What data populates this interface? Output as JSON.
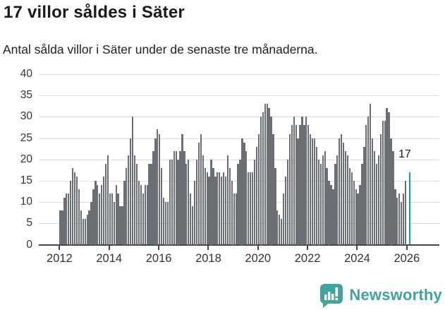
{
  "header": {
    "title": "17 villor såldes i Säter",
    "subtitle": "Antal sålda villor i Säter under de senaste tre månaderna."
  },
  "chart_data": {
    "type": "bar",
    "title": "17 villor såldes i Säter",
    "subtitle": "Antal sålda villor i Säter under de senaste tre månaderna.",
    "x_start": "2012-01",
    "frequency": "monthly",
    "values": [
      8,
      8,
      11,
      12,
      12,
      15,
      18,
      17,
      16,
      13,
      8,
      6,
      6,
      7,
      8,
      10,
      13,
      15,
      14,
      12,
      14,
      16,
      19,
      21,
      12,
      12,
      10,
      14,
      12,
      9,
      9,
      15,
      18,
      21,
      25,
      30,
      21,
      19,
      15,
      14,
      12,
      14,
      14,
      19,
      19,
      22,
      25,
      27,
      26,
      18,
      11,
      10,
      10,
      20,
      20,
      22,
      22,
      20,
      22,
      26,
      22,
      19,
      20,
      12,
      9,
      15,
      20,
      24,
      26,
      21,
      18,
      17,
      16,
      20,
      18,
      16,
      17,
      17,
      16,
      17,
      16,
      21,
      18,
      15,
      12,
      12,
      19,
      20,
      25,
      24,
      22,
      17,
      17,
      17,
      20,
      23,
      26,
      30,
      31,
      33,
      33,
      32,
      30,
      26,
      18,
      8,
      7,
      6,
      12,
      16,
      20,
      26,
      28,
      30,
      28,
      25,
      28,
      30,
      28,
      30,
      28,
      26,
      25,
      25,
      23,
      20,
      19,
      21,
      22,
      18,
      15,
      14,
      13,
      19,
      21,
      25,
      26,
      24,
      22,
      21,
      18,
      17,
      15,
      13,
      12,
      14,
      19,
      23,
      28,
      30,
      33,
      25,
      22,
      19,
      21,
      26,
      29,
      29,
      32,
      31,
      25,
      22,
      13,
      11,
      12,
      10,
      12,
      15,
      null,
      17
    ],
    "highlight": {
      "index": 169,
      "value": 17,
      "label": "17"
    },
    "ylim": [
      0,
      40
    ],
    "yticks": [
      0,
      5,
      10,
      15,
      20,
      25,
      30,
      35,
      40
    ],
    "xticks": [
      2012,
      2014,
      2016,
      2018,
      2020,
      2022,
      2024,
      2026
    ],
    "grid": true,
    "legend": "none",
    "colors": {
      "bar": "#6b6e75",
      "highlight": "#0ba2a4",
      "grid": "#dcdcdc",
      "axis": "#47474a",
      "tick_label": "#333333"
    }
  },
  "annotation": {
    "label": "17"
  },
  "footer": {
    "brand": "Newsworthy",
    "brand_color": "#3ea49c"
  }
}
